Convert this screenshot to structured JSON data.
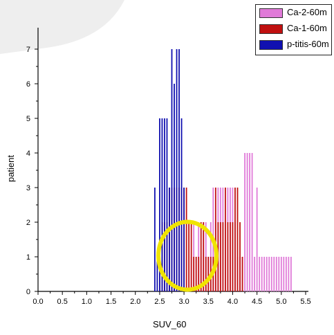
{
  "chart_data": {
    "type": "bar",
    "xlabel": "SUV_60",
    "ylabel": "patient",
    "xlim": [
      0,
      5.5
    ],
    "ylim": [
      0,
      7.5
    ],
    "x_ticks": [
      "0.0",
      "0.5",
      "1.0",
      "1.5",
      "2.0",
      "2.5",
      "3.0",
      "3.5",
      "4.0",
      "4.5",
      "5.0",
      "5.5"
    ],
    "y_ticks": [
      "0",
      "1",
      "2",
      "3",
      "4",
      "5",
      "6",
      "7"
    ],
    "bar_width": 0.025,
    "legend_position": "top-right",
    "series": [
      {
        "name": "Ca-2-60m",
        "color": "#e07ad8",
        "x": [
          3.15,
          3.2,
          3.25,
          3.3,
          3.35,
          3.4,
          3.45,
          3.5,
          3.55,
          3.6,
          3.65,
          3.7,
          3.75,
          3.8,
          3.85,
          3.9,
          3.95,
          4.0,
          4.05,
          4.1,
          4.15,
          4.2,
          4.25,
          4.3,
          4.35,
          4.4,
          4.45,
          4.5,
          4.55,
          4.6,
          4.65,
          4.7,
          4.75,
          4.8,
          4.85,
          4.9,
          4.95,
          5.0,
          5.05,
          5.1,
          5.15,
          5.2
        ],
        "values": [
          1,
          2,
          1,
          2,
          1,
          2,
          2,
          1,
          2,
          3,
          2,
          3,
          3,
          3,
          2,
          3,
          3,
          3,
          2,
          1,
          1,
          1,
          4,
          4,
          4,
          4,
          1,
          3,
          1,
          1,
          1,
          1,
          1,
          1,
          1,
          1,
          1,
          1,
          1,
          1,
          1,
          1
        ]
      },
      {
        "name": "Ca-1-60m",
        "color": "#c01010",
        "x": [
          2.5,
          2.55,
          2.6,
          2.65,
          2.7,
          2.75,
          2.8,
          2.85,
          2.9,
          2.95,
          3.0,
          3.05,
          3.1,
          3.15,
          3.2,
          3.25,
          3.3,
          3.35,
          3.4,
          3.45,
          3.5,
          3.55,
          3.6,
          3.65,
          3.7,
          3.75,
          3.8,
          3.85,
          3.9,
          3.95,
          4.0,
          4.05,
          4.1,
          4.15,
          4.2
        ],
        "values": [
          1,
          2,
          2,
          2,
          3,
          3,
          3,
          3,
          3,
          3,
          3,
          3,
          2,
          2,
          1,
          1,
          1,
          2,
          2,
          1,
          1,
          1,
          1,
          3,
          2,
          2,
          2,
          3,
          2,
          2,
          2,
          3,
          3,
          2,
          1
        ]
      },
      {
        "name": "p-titis-60m",
        "color": "#1010b0",
        "x": [
          2.4,
          2.45,
          2.5,
          2.55,
          2.6,
          2.65,
          2.7,
          2.75,
          2.8,
          2.85,
          2.9,
          2.95,
          3.0
        ],
        "values": [
          3,
          1,
          5,
          5,
          5,
          5,
          3,
          7,
          6,
          7,
          7,
          5,
          3
        ]
      }
    ]
  }
}
